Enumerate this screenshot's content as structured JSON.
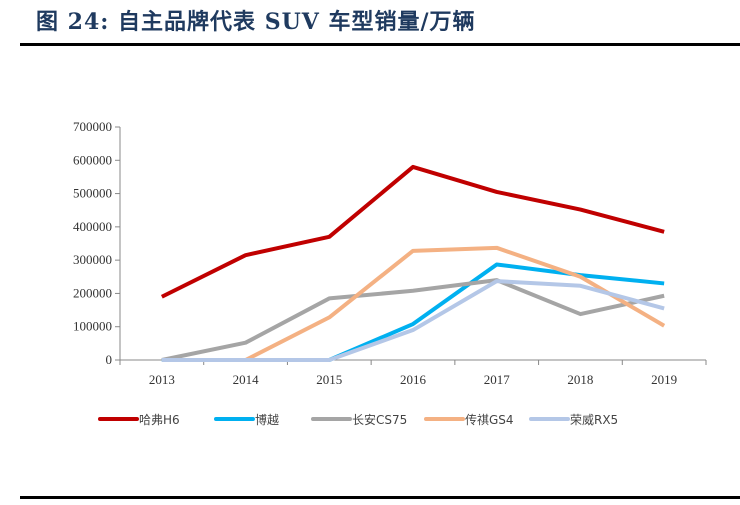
{
  "chart_data": {
    "type": "line",
    "title": "图 24:  自主品牌代表 SUV 车型销量/万辆",
    "xlabel": "",
    "ylabel": "",
    "categories": [
      "2013",
      "2014",
      "2015",
      "2016",
      "2017",
      "2018",
      "2019"
    ],
    "ylim": [
      0,
      700000
    ],
    "yticks": [
      "0",
      "100000",
      "200000",
      "300000",
      "400000",
      "500000",
      "600000",
      "700000"
    ],
    "grid": false,
    "legend_position": "bottom",
    "series": [
      {
        "name": "哈弗H6",
        "color": "#c00000",
        "values": [
          190000,
          315000,
          370000,
          580000,
          505000,
          452000,
          385000
        ]
      },
      {
        "name": "博越",
        "color": "#00b0f0",
        "values": [
          0,
          0,
          0,
          108000,
          287000,
          255000,
          230000
        ]
      },
      {
        "name": "长安CS75",
        "color": "#a5a5a5",
        "values": [
          0,
          52000,
          185000,
          208000,
          240000,
          138000,
          193000
        ]
      },
      {
        "name": "传祺GS4",
        "color": "#f4b183",
        "values": [
          null,
          0,
          128000,
          328000,
          337000,
          250000,
          103000
        ]
      },
      {
        "name": "荣威RX5",
        "color": "#b4c7e7",
        "values": [
          0,
          0,
          0,
          90000,
          237000,
          223000,
          155000
        ]
      }
    ]
  }
}
